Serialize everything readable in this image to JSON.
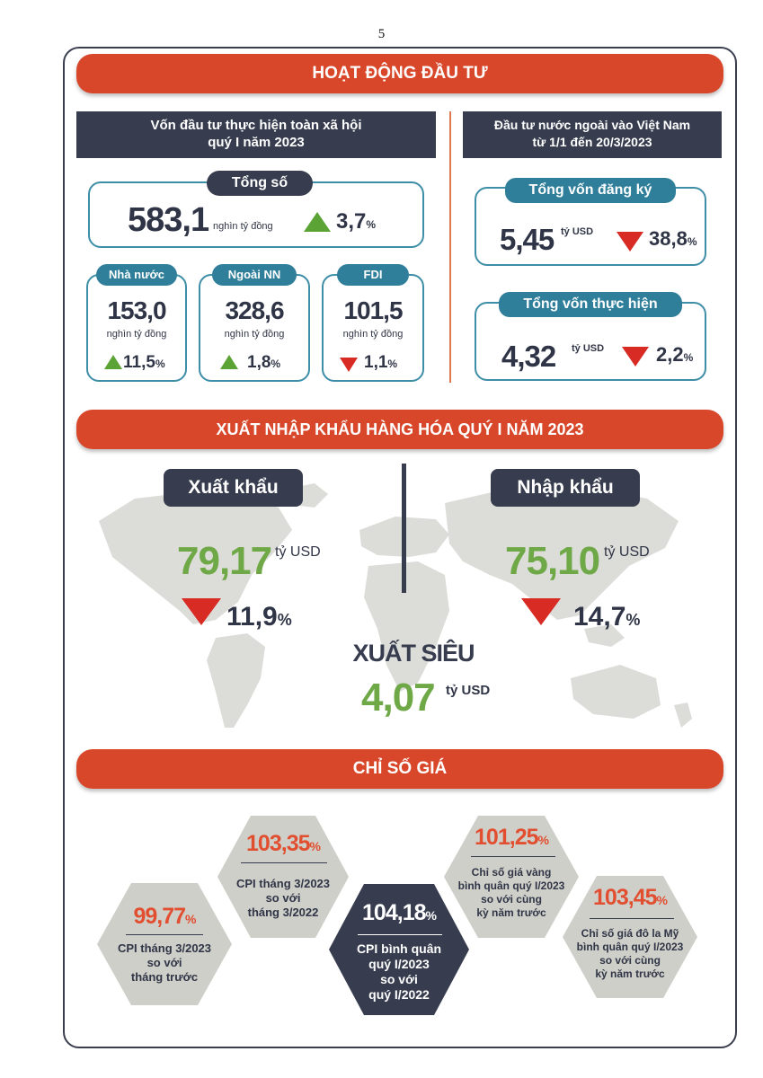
{
  "page_number": "5",
  "investment": {
    "title": "HOẠT ĐỘNG ĐẦU TƯ",
    "left_header": [
      "Vốn đầu tư thực hiện toàn xã hội",
      "quý I năm 2023"
    ],
    "total": {
      "label": "Tổng số",
      "value": "583,1",
      "unit": "nghìn tỷ đồng",
      "change": "3,7",
      "pct": "%",
      "direction": "up"
    },
    "breakdown": [
      {
        "label": "Nhà nước",
        "value": "153,0",
        "unit": "nghìn tỷ đồng",
        "change": "11,5",
        "pct": "%",
        "direction": "up"
      },
      {
        "label": "Ngoài NN",
        "value": "328,6",
        "unit": "nghìn tỷ đồng",
        "change": "1,8",
        "pct": "%",
        "direction": "up"
      },
      {
        "label": "FDI",
        "value": "101,5",
        "unit": "nghìn tỷ đồng",
        "change": "1,1",
        "pct": "%",
        "direction": "down"
      }
    ],
    "right_header": [
      "Đầu tư nước ngoài vào Việt Nam",
      "từ 1/1 đến 20/3/2023"
    ],
    "registered": {
      "label": "Tổng vốn đăng ký",
      "value": "5,45",
      "unit": "tỷ USD",
      "change": "38,8",
      "pct": "%",
      "direction": "down"
    },
    "implemented": {
      "label": "Tổng vốn thực hiện",
      "value": "4,32",
      "unit": "tỷ USD",
      "change": "2,2",
      "pct": "%",
      "direction": "down"
    }
  },
  "trade": {
    "title": "XUẤT NHẬP KHẨU HÀNG HÓA QUÝ I NĂM 2023",
    "export": {
      "label": "Xuất khẩu",
      "value": "79,17",
      "unit": "tỷ USD",
      "change": "11,9",
      "pct": "%",
      "direction": "down"
    },
    "import": {
      "label": "Nhập khẩu",
      "value": "75,10",
      "unit": "tỷ USD",
      "change": "14,7",
      "pct": "%",
      "direction": "down"
    },
    "surplus": {
      "label": "XUẤT SIÊU",
      "value": "4,07",
      "unit": "tỷ USD"
    }
  },
  "prices": {
    "title": "CHỈ SỐ GIÁ",
    "items": [
      {
        "value": "99,77",
        "pct": "%",
        "lines": [
          "CPI tháng 3/2023",
          "so với",
          "tháng trước"
        ]
      },
      {
        "value": "103,35",
        "pct": "%",
        "lines": [
          "CPI tháng 3/2023",
          "so với",
          "tháng 3/2022"
        ]
      },
      {
        "value": "104,18",
        "pct": "%",
        "lines": [
          "CPI bình quân",
          "quý I/2023",
          "so với",
          "quý I/2022"
        ]
      },
      {
        "value": "101,25",
        "pct": "%",
        "lines": [
          "Chỉ số giá vàng",
          "bình quân quý I/2023",
          "so với cùng",
          "kỳ năm trước"
        ]
      },
      {
        "value": "103,45",
        "pct": "%",
        "lines": [
          "Chỉ số giá đô la Mỹ",
          "bình quân quý I/2023",
          "so với cùng",
          "kỳ năm trước"
        ]
      }
    ]
  },
  "colors": {
    "banner": "#d9472b",
    "dark": "#373d4f",
    "teal": "#2f7f9b",
    "up": "#5aa334",
    "down": "#d72b24",
    "green_value": "#6fa847",
    "orange_value": "#e24e30",
    "hex_gray": "#cfcfc9",
    "map_gray": "#dcdcd8"
  }
}
